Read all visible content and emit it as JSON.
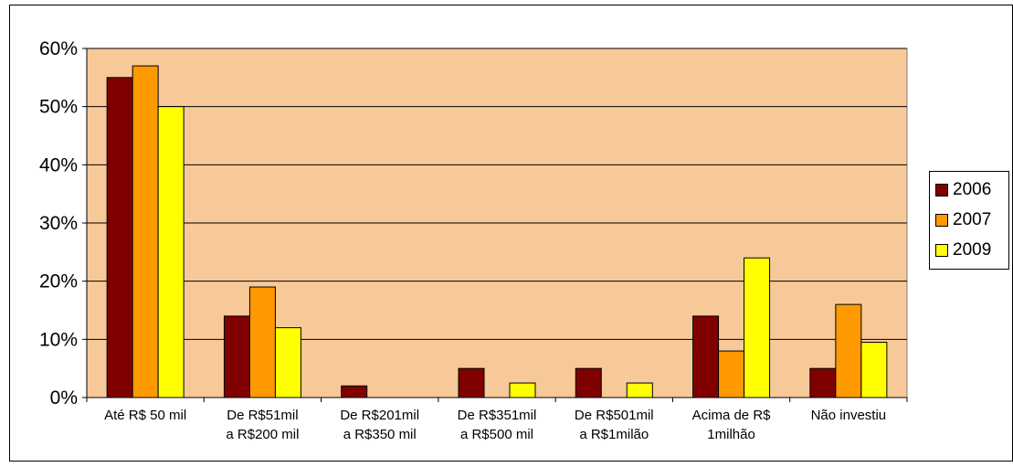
{
  "chart_data": {
    "type": "bar",
    "title": "",
    "xlabel": "",
    "ylabel": "",
    "ylim": [
      0,
      60
    ],
    "y_ticks": [
      "0%",
      "10%",
      "20%",
      "30%",
      "40%",
      "50%",
      "60%"
    ],
    "grid": true,
    "legend_position": "right",
    "plot_background": "#F8C998",
    "categories": [
      [
        "Até R$ 50 mil"
      ],
      [
        "De R$51mil",
        "a R$200 mil"
      ],
      [
        "De R$201mil",
        "a R$350 mil"
      ],
      [
        "De R$351mil",
        "a R$500 mil"
      ],
      [
        "De R$501mil",
        "a R$1milão"
      ],
      [
        "Acima de R$",
        "1milhão"
      ],
      [
        "Não investiu"
      ]
    ],
    "series": [
      {
        "name": "2006",
        "color": "#800000",
        "values": [
          55,
          14,
          2,
          5,
          5,
          14,
          5
        ]
      },
      {
        "name": "2007",
        "color": "#FF9900",
        "values": [
          57,
          19,
          0,
          0,
          0,
          8,
          16
        ]
      },
      {
        "name": "2009",
        "color": "#FFFF00",
        "values": [
          50,
          12,
          0,
          2.5,
          2.5,
          24,
          9.5
        ]
      }
    ]
  }
}
